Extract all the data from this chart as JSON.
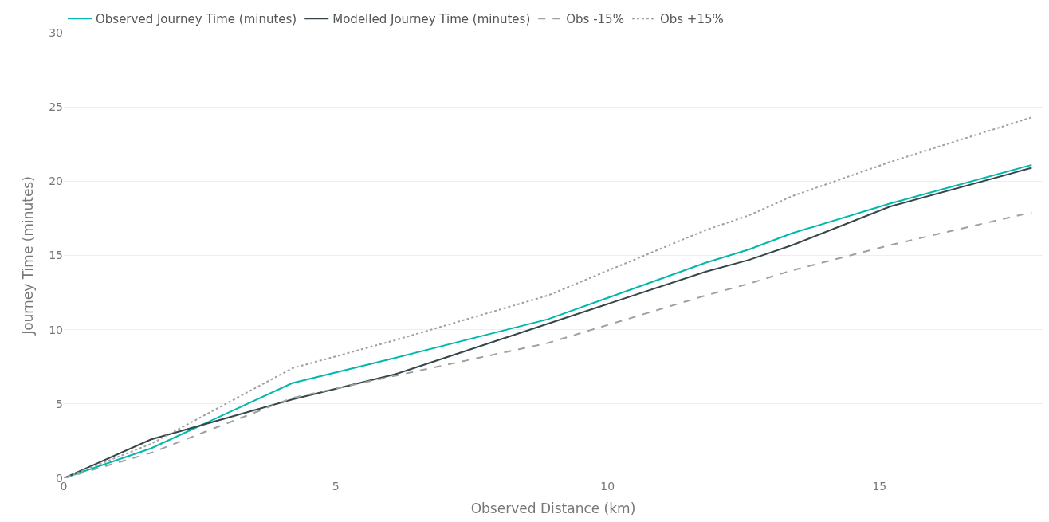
{
  "chart_data": {
    "type": "line",
    "xlabel": "Observed Distance (km)",
    "ylabel": "Journey Time (minutes)",
    "x": [
      0,
      1.6,
      4.2,
      6.1,
      8.9,
      11.8,
      12.6,
      13.4,
      15.2,
      17.8
    ],
    "series": [
      {
        "name": "Observed Journey Time (minutes)",
        "color": "#01b8aa",
        "line_style": "solid",
        "values": [
          0,
          2.0,
          6.4,
          8.1,
          10.7,
          14.5,
          15.4,
          16.5,
          18.5,
          21.1
        ]
      },
      {
        "name": "Modelled Journey Time (minutes)",
        "color": "#374649",
        "line_style": "solid",
        "values": [
          0,
          2.6,
          5.3,
          7.0,
          10.4,
          13.9,
          14.7,
          15.7,
          18.3,
          20.9
        ]
      },
      {
        "name": "Obs -15%",
        "color": "#a0a0a0",
        "line_style": "dashed",
        "values": [
          0,
          1.7,
          5.4,
          6.9,
          9.1,
          12.3,
          13.1,
          14.0,
          15.7,
          17.9
        ]
      },
      {
        "name": "Obs +15%",
        "color": "#a0a0a0",
        "line_style": "dotted",
        "values": [
          0,
          2.3,
          7.4,
          9.3,
          12.3,
          16.7,
          17.7,
          19.0,
          21.3,
          24.3
        ]
      }
    ],
    "xlim": [
      0,
      18
    ],
    "xticks": [
      0,
      5,
      10,
      15
    ],
    "ylim": [
      0,
      30
    ],
    "yticks": [
      0,
      5,
      10,
      15,
      20,
      25,
      30
    ],
    "grid": "y",
    "legend": "top left",
    "marker": "none"
  }
}
